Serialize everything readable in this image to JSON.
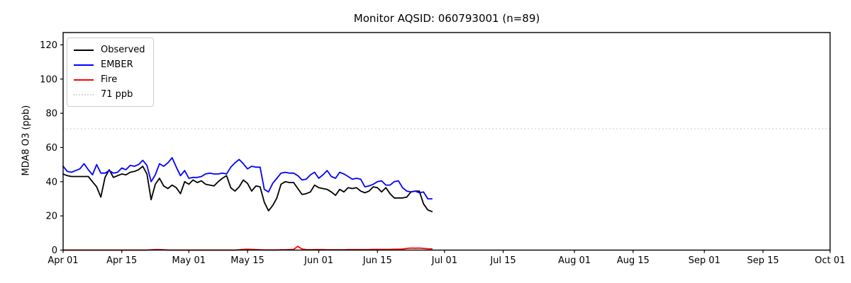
{
  "figure": {
    "background": "#ffffff",
    "axis_color": "#000000",
    "monitor_aqsid": "060793001",
    "n_points": 89
  },
  "chart_data": {
    "type": "line",
    "title": "Monitor AQSID: 060793001 (n=89)",
    "xlabel": "",
    "ylabel": "MDA8 O3 (ppb)",
    "ylim": [
      0,
      127.2
    ],
    "yticks": [
      0,
      20,
      40,
      60,
      80,
      100,
      120
    ],
    "xlim_days": [
      0,
      183
    ],
    "xticks": [
      {
        "label": "Apr 01",
        "day": 0
      },
      {
        "label": "Apr 15",
        "day": 14
      },
      {
        "label": "May 01",
        "day": 30
      },
      {
        "label": "May 15",
        "day": 44
      },
      {
        "label": "Jun 01",
        "day": 61
      },
      {
        "label": "Jun 15",
        "day": 75
      },
      {
        "label": "Jul 01",
        "day": 91
      },
      {
        "label": "Jul 15",
        "day": 105
      },
      {
        "label": "Aug 01",
        "day": 122
      },
      {
        "label": "Aug 15",
        "day": 136
      },
      {
        "label": "Sep 01",
        "day": 153
      },
      {
        "label": "Sep 15",
        "day": 167
      },
      {
        "label": "Oct 01",
        "day": 183
      }
    ],
    "x_start": "Apr 01",
    "x_step_days": 1,
    "grid": false,
    "threshold": {
      "label": "71 ppb",
      "value": 71,
      "color": "#d9d9d9",
      "style": "dotted"
    },
    "legend": {
      "position": "upper left",
      "entries": [
        {
          "label": "Observed",
          "color": "#000000",
          "style": "solid"
        },
        {
          "label": "EMBER",
          "color": "#0000ff",
          "style": "solid"
        },
        {
          "label": "Fire",
          "color": "#ff0000",
          "style": "solid"
        },
        {
          "label": "71 ppb",
          "color": "#d9d9d9",
          "style": "dotted"
        }
      ]
    },
    "series": [
      {
        "name": "Observed",
        "color": "#000000",
        "values": [
          44.5,
          43.5,
          43,
          43,
          43,
          43,
          43,
          40,
          37,
          31,
          42.5,
          47,
          42.5,
          43.5,
          44.5,
          44,
          45.5,
          46,
          47,
          49,
          44.5,
          29.5,
          38.5,
          42,
          37.5,
          36,
          38,
          36.5,
          33,
          40,
          38.5,
          41,
          39.5,
          40.5,
          38.5,
          38,
          37.5,
          40,
          42,
          43.5,
          36.5,
          34.5,
          37,
          41,
          39,
          34.5,
          37.5,
          37,
          28,
          23,
          26,
          30.5,
          38.5,
          40,
          39.5,
          39.5,
          36,
          32.5,
          33,
          34,
          38,
          36.5,
          36,
          35.5,
          34,
          32,
          35.5,
          34,
          36.5,
          36,
          36.5,
          34.5,
          33.5,
          34.5,
          37,
          36.5,
          34,
          36.5,
          33,
          30.5,
          30.5,
          30.5,
          31,
          34,
          34.5,
          34.5,
          27,
          23.5,
          22.5
        ]
      },
      {
        "name": "EMBER",
        "color": "#0000ff",
        "values": [
          49,
          46,
          45.5,
          46.5,
          47.5,
          50.5,
          47,
          44,
          50,
          45,
          45,
          46.5,
          45,
          45.5,
          48,
          47,
          49.5,
          49,
          50,
          52.5,
          49.5,
          40,
          44,
          50.5,
          49,
          51,
          54,
          48.5,
          43.5,
          46.5,
          42,
          42.5,
          42.5,
          43,
          44.5,
          45,
          44.5,
          44.5,
          45,
          44.5,
          48.5,
          51,
          53,
          50.5,
          47.5,
          49,
          48.5,
          48.5,
          35.5,
          34,
          39,
          42,
          45,
          45.5,
          45,
          45,
          43.5,
          41,
          41.5,
          44,
          45.5,
          42,
          44,
          46.5,
          43,
          42,
          45.5,
          44.5,
          43,
          41.5,
          42,
          41.5,
          37,
          37.5,
          38.5,
          40,
          40.5,
          38,
          38,
          40,
          40.5,
          36.5,
          34.5,
          34,
          34.5,
          33.5,
          34,
          30,
          30
        ]
      },
      {
        "name": "Fire",
        "color": "#ff0000",
        "values": [
          0,
          0,
          0,
          0,
          0,
          0,
          0,
          0,
          0,
          0,
          0,
          0,
          0,
          0,
          0,
          0,
          0,
          0,
          0,
          0,
          0,
          0.2,
          0.3,
          0.3,
          0.2,
          0,
          0,
          0,
          0,
          0,
          0,
          0,
          0,
          0,
          0,
          0,
          0,
          0,
          0,
          0,
          0,
          0,
          0.2,
          0.4,
          0.5,
          0.4,
          0.3,
          0.2,
          0.1,
          0.1,
          0.1,
          0.1,
          0.2,
          0.2,
          0.3,
          0.4,
          2.2,
          0.6,
          0.3,
          0.2,
          0.3,
          0.3,
          0.3,
          0.2,
          0.2,
          0.2,
          0.2,
          0.2,
          0.3,
          0.3,
          0.3,
          0.3,
          0.3,
          0.3,
          0.4,
          0.4,
          0.4,
          0.4,
          0.4,
          0.5,
          0.5,
          0.6,
          1,
          1.2,
          1.1,
          1.2,
          1,
          0.8,
          0.7
        ]
      }
    ]
  }
}
